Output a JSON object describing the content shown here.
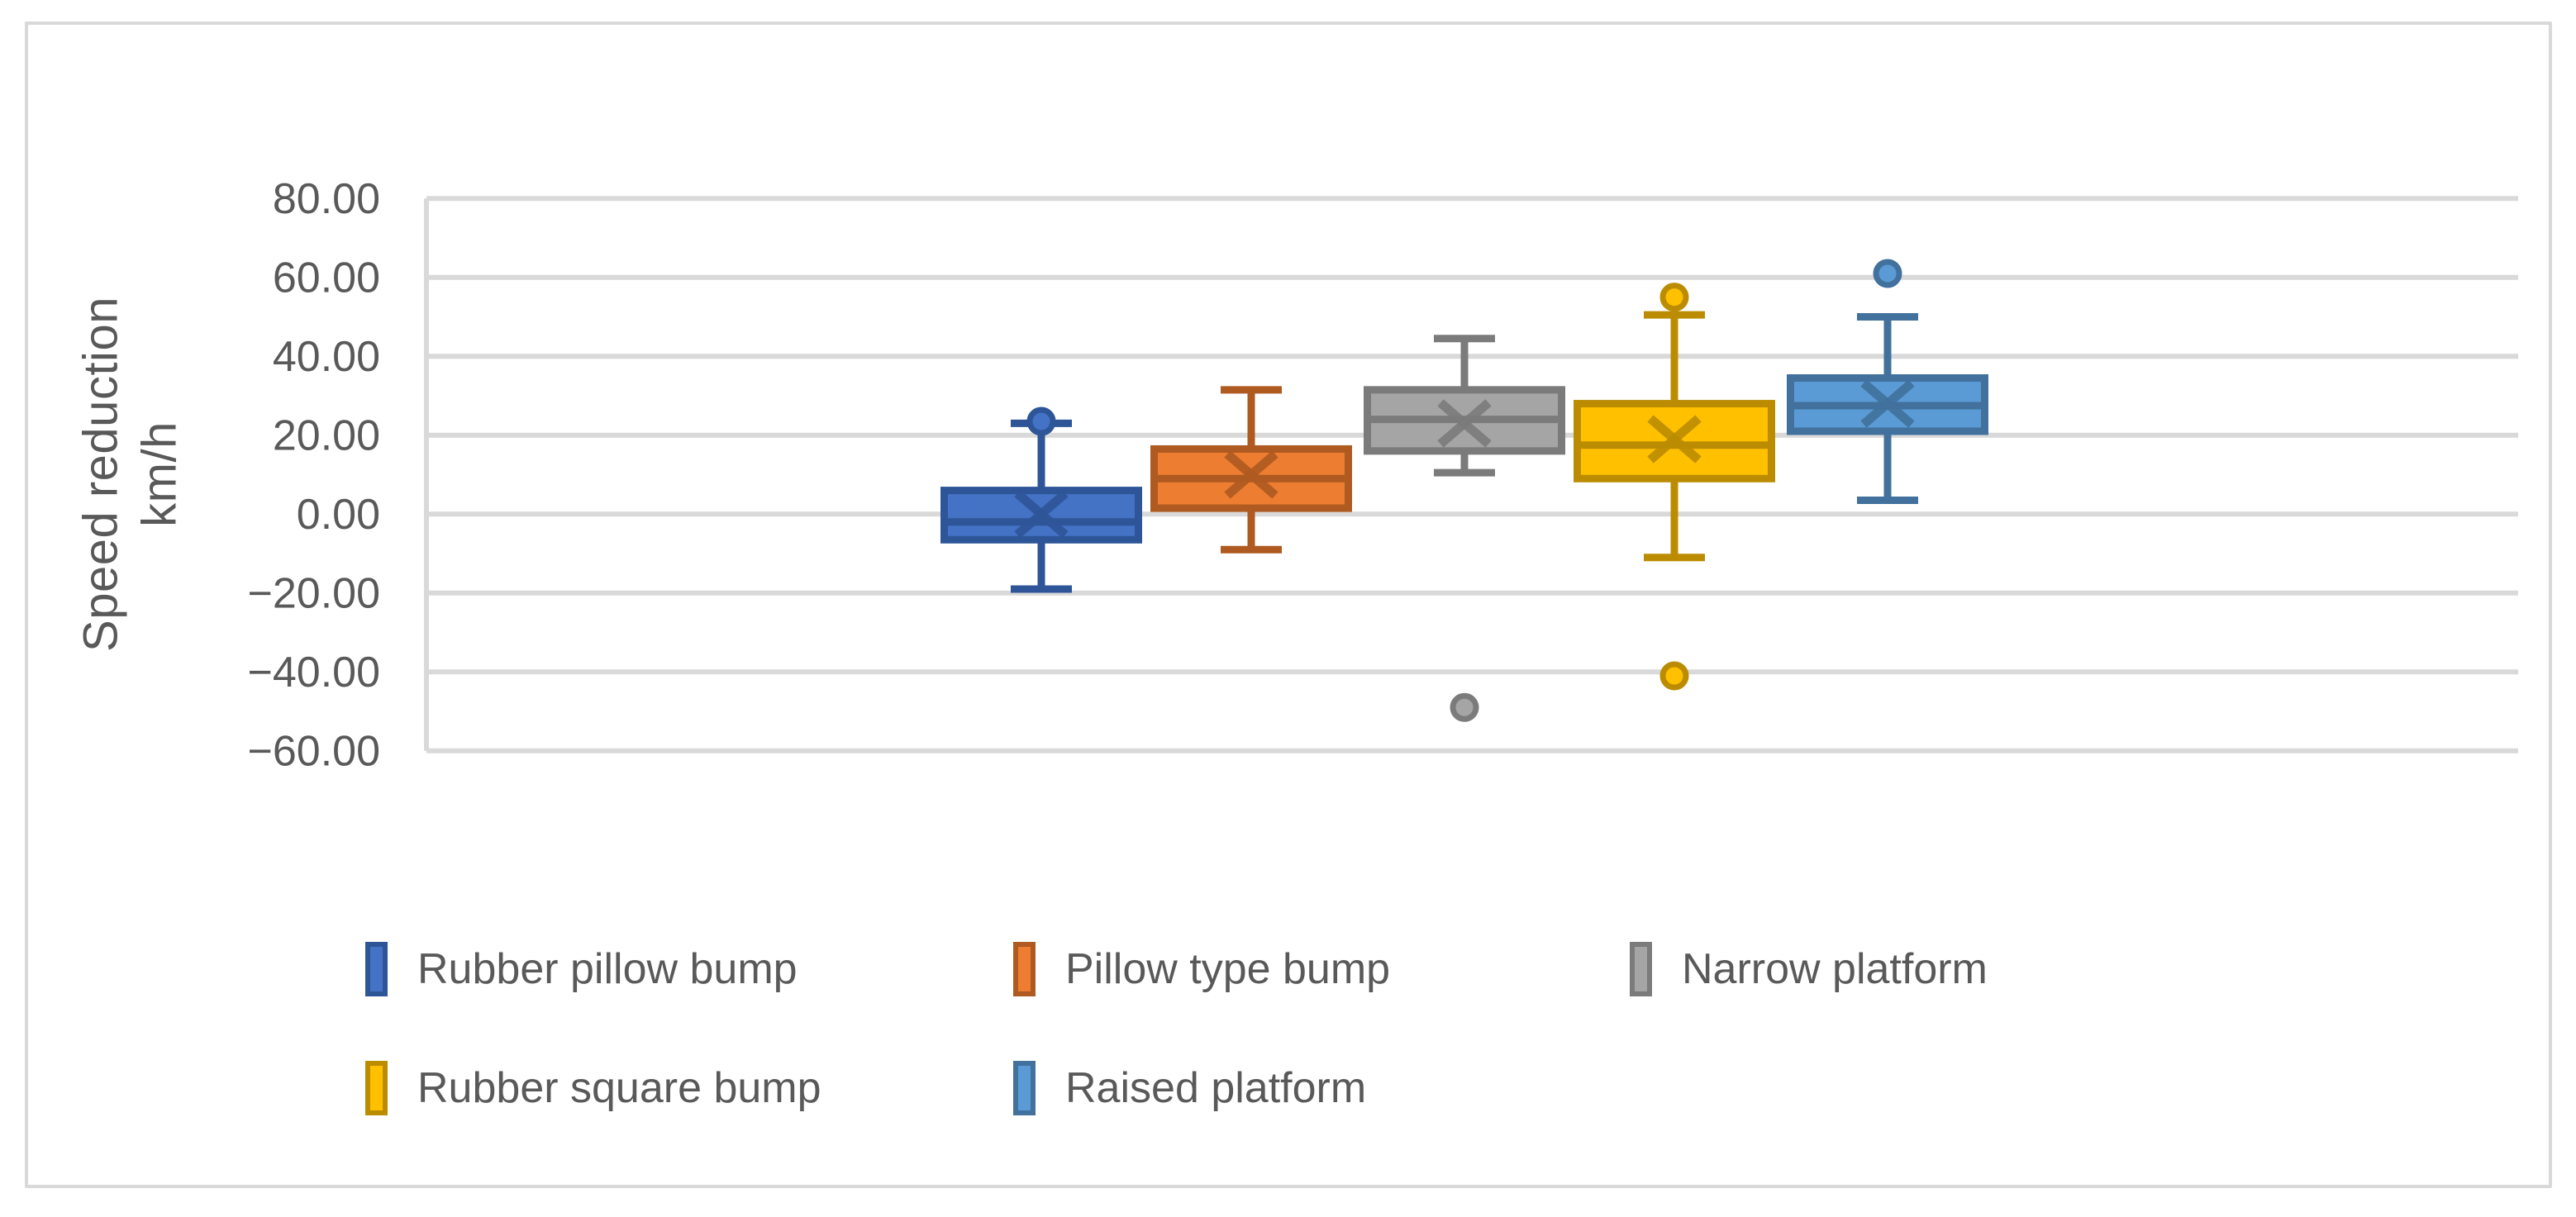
{
  "figure": {
    "background_color": "#FFFFFF",
    "border_color": "#D9D9D9"
  },
  "y_axis": {
    "title_line1": "Speed reduction",
    "title_line2": "km/h",
    "tick_labels": [
      "80.00",
      "60.00",
      "40.00",
      "20.00",
      "0.00",
      "−20.00",
      "−40.00",
      "−60.00"
    ],
    "tick_values": [
      80,
      60,
      40,
      20,
      0,
      -20,
      -40,
      -60
    ],
    "min": -60,
    "max": 80,
    "step": 20,
    "text_color": "#595959",
    "gridline_color": "#D9D9D9",
    "axis_line_color": "#D9D9D9"
  },
  "chart_data": {
    "type": "boxplot",
    "title": "",
    "ylabel": "Speed reduction km/h",
    "ylim": [
      -60,
      80
    ],
    "grid": true,
    "legend_position": "bottom",
    "series": [
      {
        "name": "Rubber pillow bump",
        "fill": "#4472C4",
        "stroke": "#2E5597",
        "whisker_low": -19,
        "q1": -6.5,
        "median": -2,
        "mean": 0,
        "q3": 6,
        "whisker_high": 23,
        "outliers": [
          23.5
        ]
      },
      {
        "name": "Pillow type bump",
        "fill": "#ED7D31",
        "stroke": "#AE5A21",
        "whisker_low": -9,
        "q1": 1.5,
        "median": 9,
        "mean": 10,
        "q3": 16.5,
        "whisker_high": 31.5,
        "outliers": []
      },
      {
        "name": "Narrow platform",
        "fill": "#A5A5A5",
        "stroke": "#7B7B7B",
        "whisker_low": 10.5,
        "q1": 16,
        "median": 24,
        "mean": 23,
        "q3": 31.5,
        "whisker_high": 44.5,
        "outliers": [
          -49
        ]
      },
      {
        "name": "Rubber square bump",
        "fill": "#FFC000",
        "stroke": "#BC8C00",
        "whisker_low": -11,
        "q1": 9,
        "median": 17.5,
        "mean": 19,
        "q3": 28,
        "whisker_high": 50.5,
        "outliers": [
          55,
          -41
        ]
      },
      {
        "name": "Raised platform",
        "fill": "#5B9BD5",
        "stroke": "#41719C",
        "whisker_low": 3.5,
        "q1": 21,
        "median": 27.5,
        "mean": 28,
        "q3": 34.5,
        "whisker_high": 50,
        "outliers": [
          61
        ]
      }
    ]
  },
  "legend": {
    "rows": [
      [
        0,
        1,
        2
      ],
      [
        3,
        4
      ]
    ]
  }
}
